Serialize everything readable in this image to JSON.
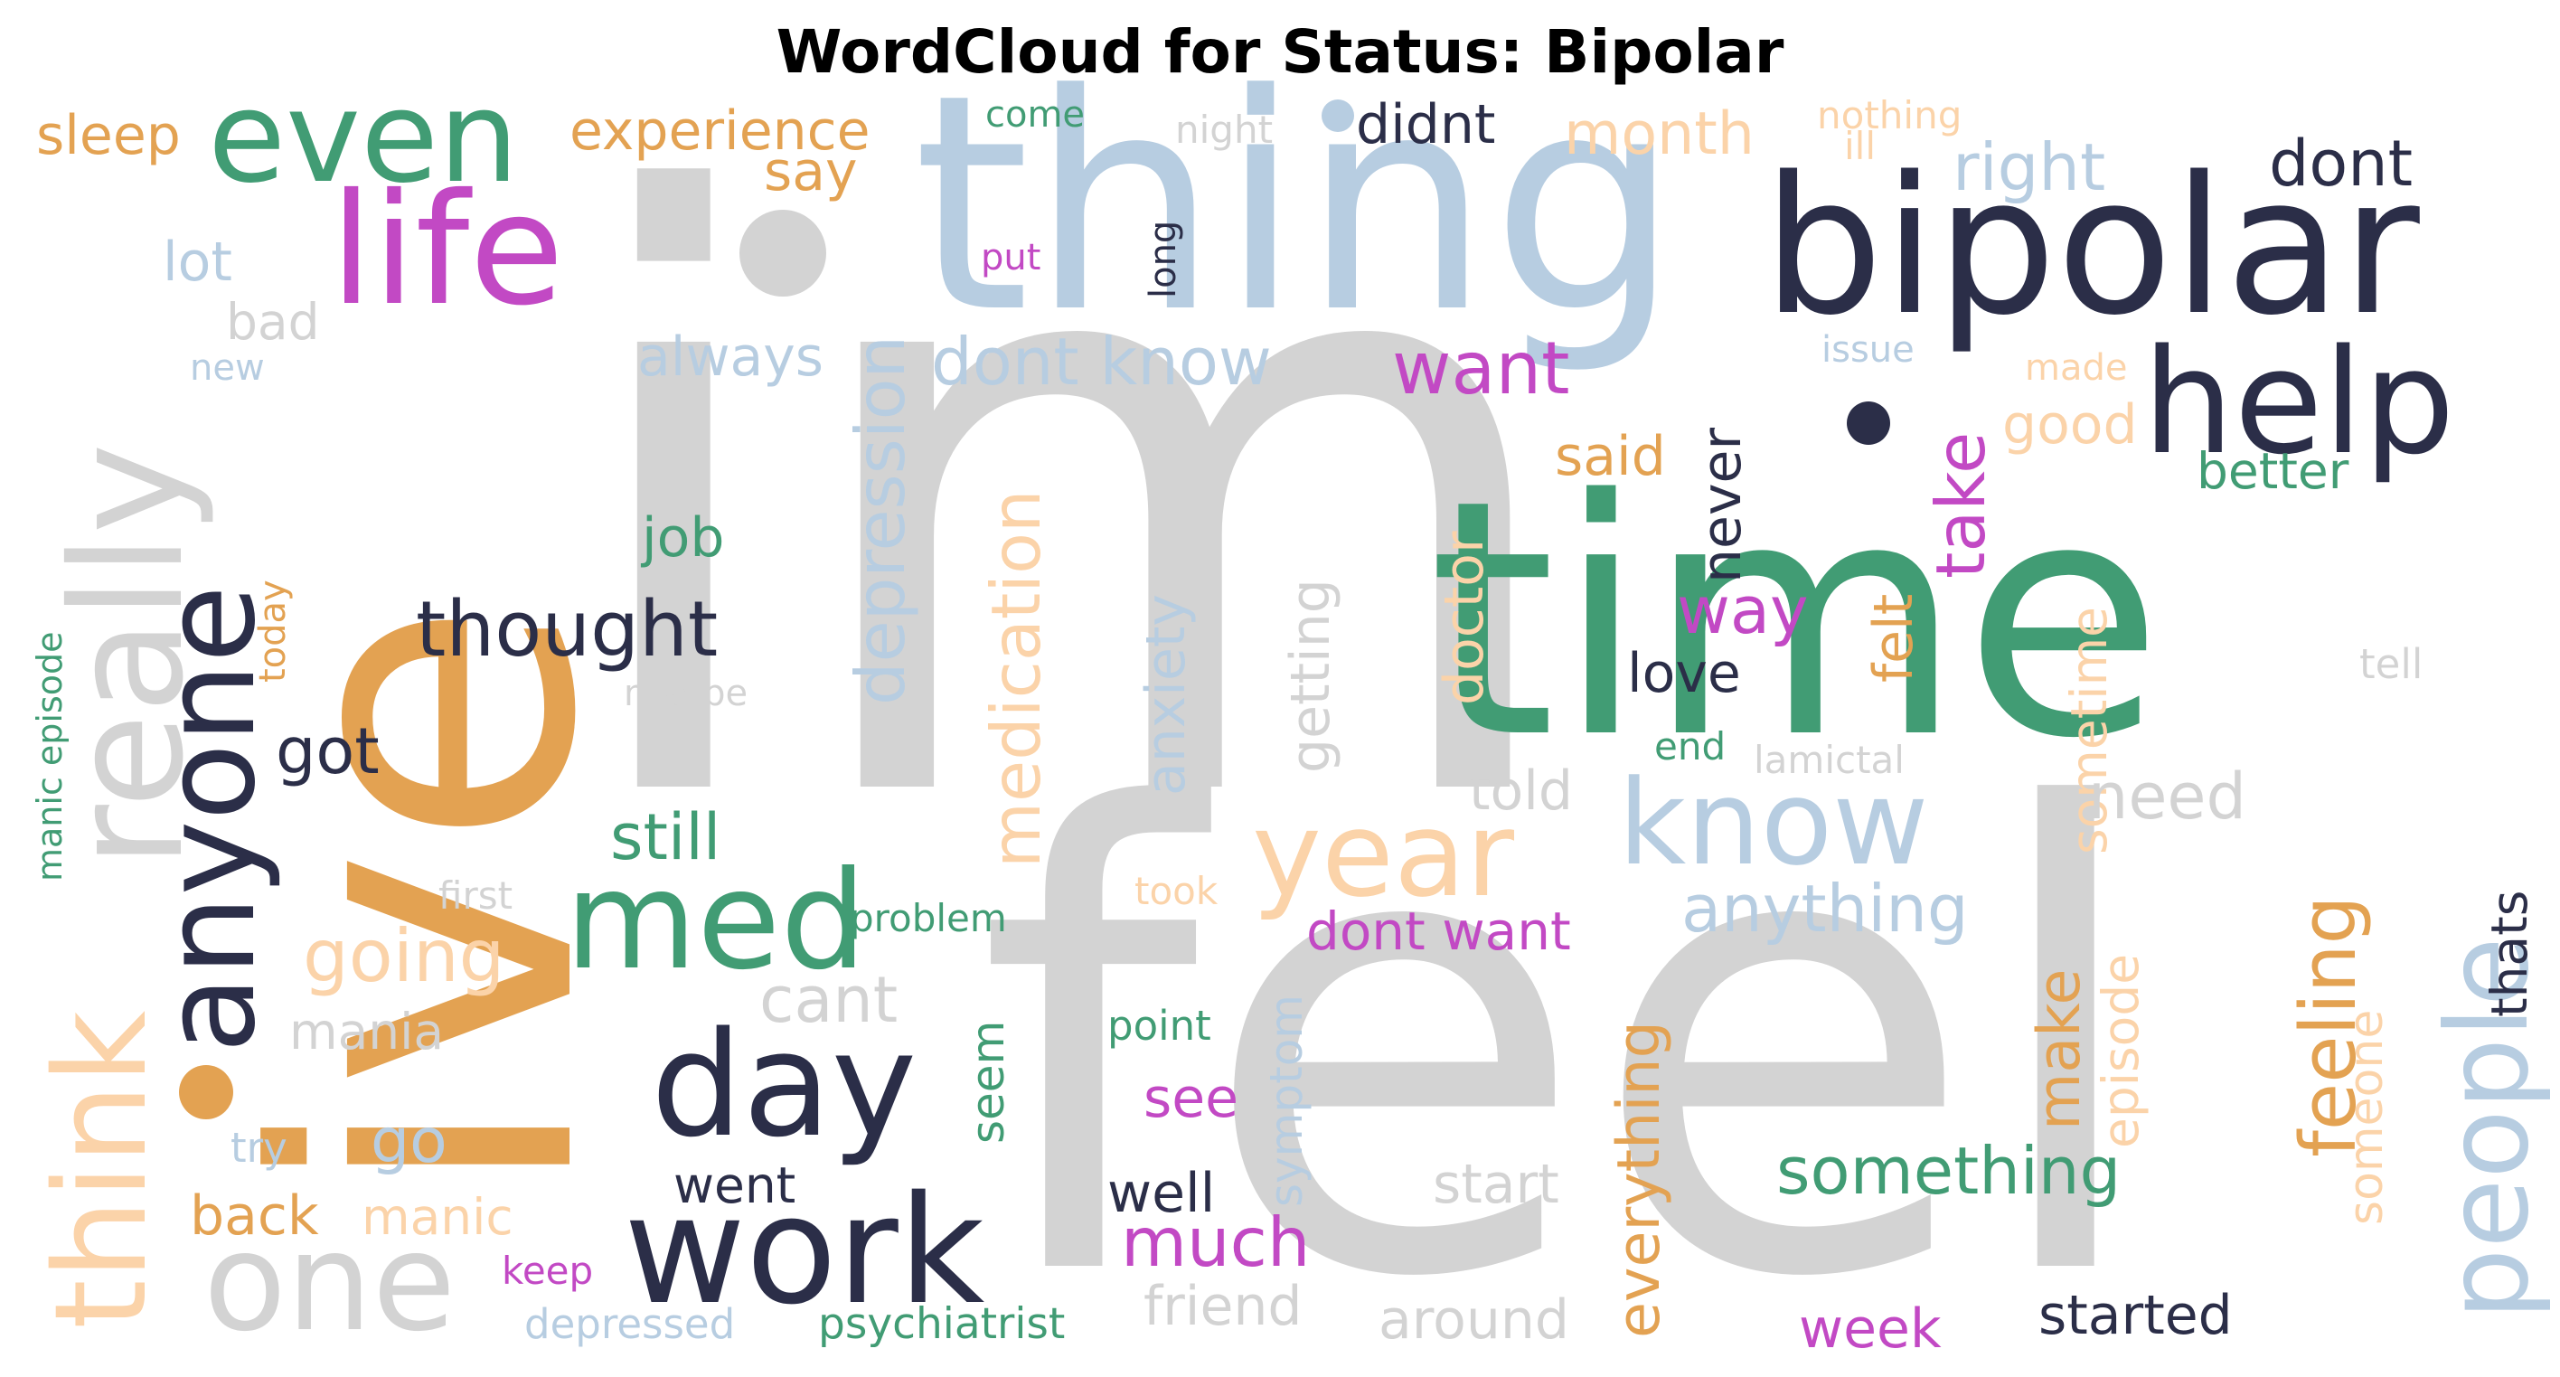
{
  "title": "WordCloud for Status: Bipolar",
  "palette": {
    "grey": "#d3d3d3",
    "orange": "#e3a252",
    "green": "#419c74",
    "lightblue": "#b7cde1",
    "navy": "#2b2e48",
    "magenta": "#c249c4",
    "peach": "#fbd3a9"
  },
  "words": [
    {
      "text": "im",
      "color": "grey"
    },
    {
      "text": "feel",
      "color": "grey"
    },
    {
      "text": "ive",
      "color": "orange"
    },
    {
      "text": "time",
      "color": "green"
    },
    {
      "text": "thing",
      "color": "lightblue"
    },
    {
      "text": "bipolar",
      "color": "navy"
    },
    {
      "text": "life",
      "color": "magenta"
    },
    {
      "text": "even",
      "color": "green"
    },
    {
      "text": "help",
      "color": "navy"
    },
    {
      "text": "really",
      "color": "grey"
    },
    {
      "text": "anyone",
      "color": "navy"
    },
    {
      "text": "think",
      "color": "peach"
    },
    {
      "text": "med",
      "color": "green"
    },
    {
      "text": "day",
      "color": "navy"
    },
    {
      "text": "work",
      "color": "navy"
    },
    {
      "text": "one",
      "color": "grey"
    },
    {
      "text": "year",
      "color": "peach"
    },
    {
      "text": "know",
      "color": "lightblue"
    },
    {
      "text": "people",
      "color": "lightblue"
    },
    {
      "text": "thought",
      "color": "navy"
    },
    {
      "text": "depression",
      "color": "lightblue"
    },
    {
      "text": "dont know",
      "color": "lightblue"
    },
    {
      "text": "want",
      "color": "magenta"
    },
    {
      "text": "right",
      "color": "lightblue"
    },
    {
      "text": "dont",
      "color": "navy"
    },
    {
      "text": "month",
      "color": "peach"
    },
    {
      "text": "experience",
      "color": "orange"
    },
    {
      "text": "sleep",
      "color": "orange"
    },
    {
      "text": "say",
      "color": "orange"
    },
    {
      "text": "come",
      "color": "green"
    },
    {
      "text": "night",
      "color": "grey"
    },
    {
      "text": "didnt",
      "color": "navy"
    },
    {
      "text": "nothing",
      "color": "peach"
    },
    {
      "text": "ill",
      "color": "peach"
    },
    {
      "text": "lot",
      "color": "lightblue"
    },
    {
      "text": "bad",
      "color": "grey"
    },
    {
      "text": "new",
      "color": "lightblue"
    },
    {
      "text": "put",
      "color": "magenta"
    },
    {
      "text": "long",
      "color": "navy"
    },
    {
      "text": "always",
      "color": "lightblue"
    },
    {
      "text": "issue",
      "color": "lightblue"
    },
    {
      "text": "made",
      "color": "peach"
    },
    {
      "text": "take",
      "color": "magenta"
    },
    {
      "text": "good",
      "color": "peach"
    },
    {
      "text": "better",
      "color": "green"
    },
    {
      "text": "said",
      "color": "orange"
    },
    {
      "text": "job",
      "color": "green"
    },
    {
      "text": "never",
      "color": "navy"
    },
    {
      "text": "medication",
      "color": "peach"
    },
    {
      "text": "way",
      "color": "magenta"
    },
    {
      "text": "love",
      "color": "navy"
    },
    {
      "text": "felt",
      "color": "orange"
    },
    {
      "text": "tell",
      "color": "grey"
    },
    {
      "text": "got",
      "color": "navy"
    },
    {
      "text": "maybe",
      "color": "grey"
    },
    {
      "text": "today",
      "color": "orange"
    },
    {
      "text": "manic episode",
      "color": "green"
    },
    {
      "text": "anxiety",
      "color": "lightblue"
    },
    {
      "text": "getting",
      "color": "grey"
    },
    {
      "text": "doctor",
      "color": "peach"
    },
    {
      "text": "end",
      "color": "green"
    },
    {
      "text": "lamictal",
      "color": "grey"
    },
    {
      "text": "sometime",
      "color": "peach"
    },
    {
      "text": "still",
      "color": "green"
    },
    {
      "text": "told",
      "color": "grey"
    },
    {
      "text": "need",
      "color": "grey"
    },
    {
      "text": "going",
      "color": "peach"
    },
    {
      "text": "first",
      "color": "grey"
    },
    {
      "text": "problem",
      "color": "green"
    },
    {
      "text": "took",
      "color": "peach"
    },
    {
      "text": "dont want",
      "color": "magenta"
    },
    {
      "text": "anything",
      "color": "lightblue"
    },
    {
      "text": "cant",
      "color": "grey"
    },
    {
      "text": "mania",
      "color": "grey"
    },
    {
      "text": "everything",
      "color": "orange"
    },
    {
      "text": "make",
      "color": "orange"
    },
    {
      "text": "episode",
      "color": "peach"
    },
    {
      "text": "feeling",
      "color": "orange"
    },
    {
      "text": "thats",
      "color": "navy"
    },
    {
      "text": "someone",
      "color": "peach"
    },
    {
      "text": "seem",
      "color": "green"
    },
    {
      "text": "point",
      "color": "green"
    },
    {
      "text": "see",
      "color": "magenta"
    },
    {
      "text": "symptom",
      "color": "lightblue"
    },
    {
      "text": "go",
      "color": "lightblue"
    },
    {
      "text": "try",
      "color": "lightblue"
    },
    {
      "text": "went",
      "color": "navy"
    },
    {
      "text": "well",
      "color": "navy"
    },
    {
      "text": "start",
      "color": "grey"
    },
    {
      "text": "something",
      "color": "green"
    },
    {
      "text": "back",
      "color": "orange"
    },
    {
      "text": "manic",
      "color": "peach"
    },
    {
      "text": "much",
      "color": "magenta"
    },
    {
      "text": "keep",
      "color": "magenta"
    },
    {
      "text": "depressed",
      "color": "lightblue"
    },
    {
      "text": "psychiatrist",
      "color": "green"
    },
    {
      "text": "friend",
      "color": "grey"
    },
    {
      "text": "around",
      "color": "grey"
    },
    {
      "text": "week",
      "color": "magenta"
    },
    {
      "text": "started",
      "color": "navy"
    }
  ]
}
